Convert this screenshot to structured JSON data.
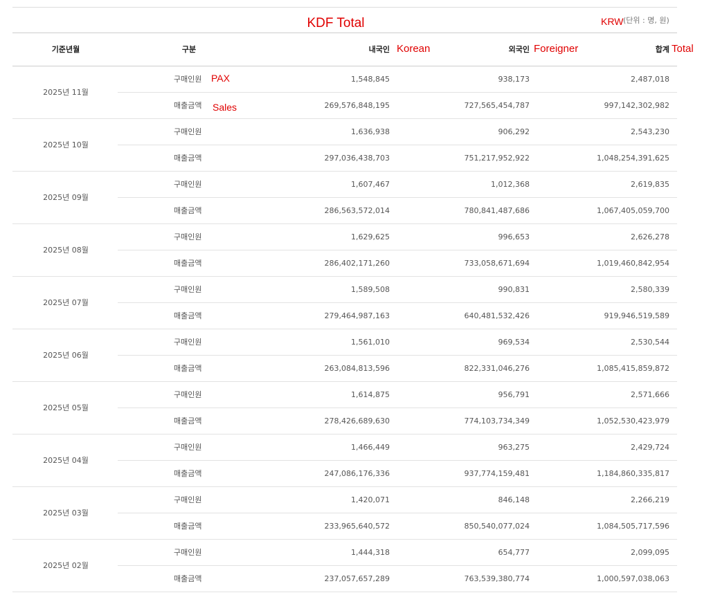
{
  "header": {
    "title": "KDF Total",
    "currency_note": "KRW",
    "unit": "(단위 : 명, 원)"
  },
  "table": {
    "columns": [
      {
        "label": "기준년월"
      },
      {
        "label": "구분"
      },
      {
        "label": "내국인",
        "note": "Korean"
      },
      {
        "label": "외국인",
        "note": "Foreigner"
      },
      {
        "label": "합계",
        "note": "Total"
      }
    ],
    "row_notes": [
      "PAX",
      "Sales"
    ],
    "months": [
      {
        "month": "2025년 11월",
        "rows": [
          [
            "구매인원",
            "1,548,845",
            "938,173",
            "2,487,018"
          ],
          [
            "매출금액",
            "269,576,848,195",
            "727,565,454,787",
            "997,142,302,982"
          ]
        ]
      },
      {
        "month": "2025년 10월",
        "rows": [
          [
            "구매인원",
            "1,636,938",
            "906,292",
            "2,543,230"
          ],
          [
            "매출금액",
            "297,036,438,703",
            "751,217,952,922",
            "1,048,254,391,625"
          ]
        ]
      },
      {
        "month": "2025년 09월",
        "rows": [
          [
            "구매인원",
            "1,607,467",
            "1,012,368",
            "2,619,835"
          ],
          [
            "매출금액",
            "286,563,572,014",
            "780,841,487,686",
            "1,067,405,059,700"
          ]
        ]
      },
      {
        "month": "2025년 08월",
        "rows": [
          [
            "구매인원",
            "1,629,625",
            "996,653",
            "2,626,278"
          ],
          [
            "매출금액",
            "286,402,171,260",
            "733,058,671,694",
            "1,019,460,842,954"
          ]
        ]
      },
      {
        "month": "2025년 07월",
        "rows": [
          [
            "구매인원",
            "1,589,508",
            "990,831",
            "2,580,339"
          ],
          [
            "매출금액",
            "279,464,987,163",
            "640,481,532,426",
            "919,946,519,589"
          ]
        ]
      },
      {
        "month": "2025년 06월",
        "rows": [
          [
            "구매인원",
            "1,561,010",
            "969,534",
            "2,530,544"
          ],
          [
            "매출금액",
            "263,084,813,596",
            "822,331,046,276",
            "1,085,415,859,872"
          ]
        ]
      },
      {
        "month": "2025년 05월",
        "rows": [
          [
            "구매인원",
            "1,614,875",
            "956,791",
            "2,571,666"
          ],
          [
            "매출금액",
            "278,426,689,630",
            "774,103,734,349",
            "1,052,530,423,979"
          ]
        ]
      },
      {
        "month": "2025년 04월",
        "rows": [
          [
            "구매인원",
            "1,466,449",
            "963,275",
            "2,429,724"
          ],
          [
            "매출금액",
            "247,086,176,336",
            "937,774,159,481",
            "1,184,860,335,817"
          ]
        ]
      },
      {
        "month": "2025년 03월",
        "rows": [
          [
            "구매인원",
            "1,420,071",
            "846,148",
            "2,266,219"
          ],
          [
            "매출금액",
            "233,965,640,572",
            "850,540,077,024",
            "1,084,505,717,596"
          ]
        ]
      },
      {
        "month": "2025년 02월",
        "rows": [
          [
            "구매인원",
            "1,444,318",
            "654,777",
            "2,099,095"
          ],
          [
            "매출금액",
            "237,057,657,289",
            "763,539,380,774",
            "1,000,597,038,063"
          ]
        ]
      }
    ]
  }
}
